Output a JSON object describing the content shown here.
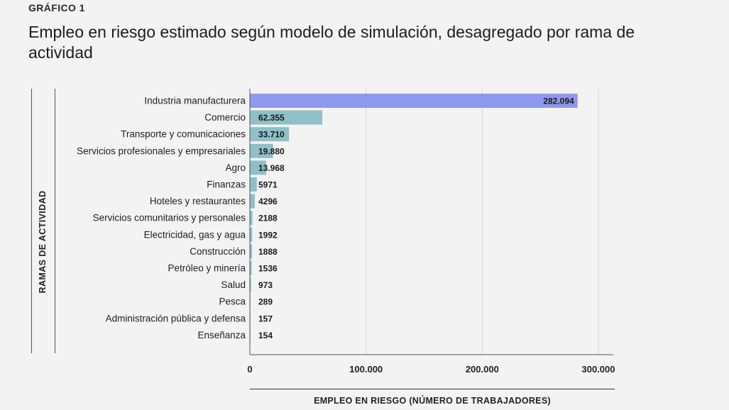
{
  "header": {
    "kicker": "GRÁFICO 1",
    "title": "Empleo en riesgo estimado según modelo de simulación, desagregado por rama de actividad"
  },
  "colors": {
    "highlight_bar": "#8e98ec",
    "bar": "#8fbfc7",
    "grid": "#d4d4d4",
    "axis": "#555555",
    "text": "#1f1f1f"
  },
  "chart_data": {
    "type": "bar",
    "orientation": "horizontal",
    "categories": [
      "Industria manufacturera",
      "Comercio",
      "Transporte y comunicaciones",
      "Servicios profesionales y empresariales",
      "Agro",
      "Finanzas",
      "Hoteles y restaurantes",
      "Servicios comunitarios y personales",
      "Electricidad, gas y agua",
      "Construcción",
      "Petróleo y minería",
      "Salud",
      "Pesca",
      "Administración pública y defensa",
      "Enseñanza"
    ],
    "values": [
      282094,
      62355,
      33710,
      19880,
      13968,
      5971,
      4296,
      2188,
      1992,
      1888,
      1536,
      973,
      289,
      157,
      154
    ],
    "data_labels": [
      "282.094",
      "62.355",
      "33.710",
      "19.880",
      "13.968",
      "5971",
      "4296",
      "2188",
      "1992",
      "1888",
      "1536",
      "973",
      "289",
      "157",
      "154"
    ],
    "xlabel": "EMPLEO EN RIESGO (NÚMERO DE TRABAJADORES)",
    "ylabel": "RAMAS DE ACTIVIDAD",
    "xlim": [
      0,
      315000
    ],
    "xticks": [
      0,
      100000,
      200000,
      300000
    ],
    "xtick_labels": [
      "0",
      "100.000",
      "200.000",
      "300.000"
    ],
    "grid": true,
    "highlight_category": "Industria manufacturera"
  }
}
